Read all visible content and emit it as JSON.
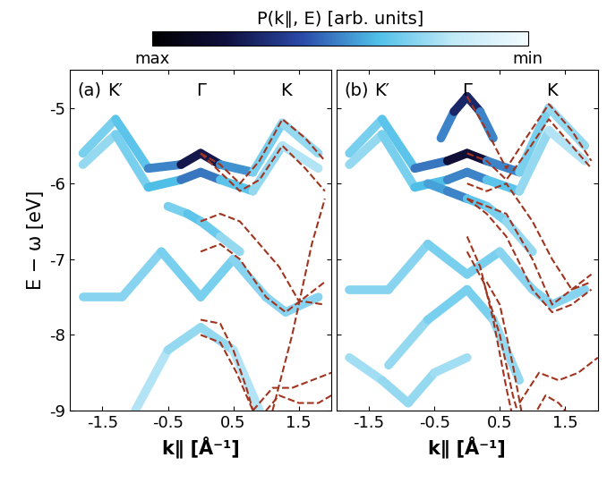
{
  "colorbar": {
    "label": "P(k∥, E) [arb. units]",
    "range": [
      0,
      1
    ],
    "ticks": [
      {
        "value": 1,
        "label": "max"
      },
      {
        "value": 0,
        "label": "min"
      }
    ]
  },
  "chart_data": [
    {
      "type": "band_map",
      "panel": "(a)",
      "xlabel": "k∥ [Å⁻¹]",
      "ylabel": "E − ω [eV]",
      "xlim": [
        -2.0,
        2.0
      ],
      "ylim": [
        -9,
        -4.5
      ],
      "xticks": [
        -1.5,
        -0.5,
        0.5,
        1.5
      ],
      "yticks": [
        -9,
        -8,
        -7,
        -6,
        -5
      ],
      "points": [
        {
          "label": "K′",
          "x": -1.3
        },
        {
          "label": "Γ",
          "x": 0
        },
        {
          "label": "K",
          "x": 1.3
        }
      ],
      "intensity": [
        {
          "x": [
            -1.8,
            -1.3,
            -0.8,
            -0.3,
            0,
            0.3,
            0.8,
            1.25,
            1.8
          ],
          "y": [
            -5.6,
            -5.15,
            -5.8,
            -5.75,
            -5.6,
            -5.75,
            -5.85,
            -5.2,
            -5.6
          ],
          "w": [
            0.3,
            0.35,
            0.4,
            0.6,
            0.95,
            0.6,
            0.35,
            0.3,
            0.25
          ]
        },
        {
          "x": [
            -1.8,
            -1.3,
            -0.8,
            -0.3,
            0,
            0.3,
            0.8,
            1.25,
            1.8
          ],
          "y": [
            -5.75,
            -5.35,
            -6.05,
            -5.95,
            -5.85,
            -5.95,
            -6.1,
            -5.5,
            -5.8
          ],
          "w": [
            0.25,
            0.3,
            0.35,
            0.45,
            0.6,
            0.45,
            0.3,
            0.25,
            0.2
          ]
        },
        {
          "x": [
            -0.5,
            -0.2,
            0,
            0.3,
            0.6
          ],
          "y": [
            -6.3,
            -6.4,
            -6.5,
            -6.7,
            -6.9
          ],
          "w": [
            0.3,
            0.35,
            0.4,
            0.3,
            0.25
          ]
        },
        {
          "x": [
            -1.8,
            -1.2,
            -0.6,
            0,
            0.5,
            1.0,
            1.3,
            1.8
          ],
          "y": [
            -7.5,
            -7.5,
            -6.9,
            -7.5,
            -7.0,
            -7.5,
            -7.7,
            -7.5
          ],
          "w": [
            0.3,
            0.3,
            0.3,
            0.35,
            0.3,
            0.3,
            0.3,
            0.3
          ]
        },
        {
          "x": [
            -1.0,
            -0.5,
            0,
            0.5,
            0.9
          ],
          "y": [
            -9,
            -8.2,
            -7.9,
            -8.2,
            -9
          ],
          "w": [
            0.2,
            0.25,
            0.3,
            0.25,
            0.2
          ]
        }
      ],
      "bands": {
        "color": "#a0341f",
        "line_style": "dashed",
        "lines": [
          {
            "x": [
              0,
              0.3,
              0.6,
              0.9,
              1.25,
              1.6,
              1.9
            ],
            "y": [
              -5.6,
              -5.75,
              -6.0,
              -5.7,
              -5.15,
              -5.4,
              -5.7
            ]
          },
          {
            "x": [
              0,
              0.3,
              0.6,
              0.9,
              1.25,
              1.6,
              1.9
            ],
            "y": [
              -5.6,
              -5.85,
              -6.1,
              -5.95,
              -5.5,
              -5.8,
              -6.1
            ]
          },
          {
            "x": [
              0,
              0.3,
              0.6,
              0.9,
              1.2,
              1.5,
              1.9
            ],
            "y": [
              -6.5,
              -6.4,
              -6.5,
              -6.8,
              -7.1,
              -7.55,
              -7.6
            ]
          },
          {
            "x": [
              0,
              0.3,
              0.6,
              1.0,
              1.3,
              1.6,
              1.9
            ],
            "y": [
              -6.9,
              -6.8,
              -7.0,
              -7.5,
              -7.7,
              -7.5,
              -7.3
            ]
          },
          {
            "x": [
              0,
              0.3,
              0.5,
              0.7,
              0.8
            ],
            "y": [
              -7.8,
              -7.85,
              -8.2,
              -8.7,
              -9.0
            ]
          },
          {
            "x": [
              0,
              0.3,
              0.55,
              0.75,
              0.85
            ],
            "y": [
              -8.0,
              -8.1,
              -8.5,
              -8.9,
              -9.1
            ]
          },
          {
            "x": [
              0.8,
              1.1,
              1.4,
              1.7,
              2.0
            ],
            "y": [
              -9.0,
              -8.7,
              -8.7,
              -8.6,
              -8.5
            ]
          },
          {
            "x": [
              0.9,
              1.2,
              1.5,
              1.8,
              2.0
            ],
            "y": [
              -9.1,
              -8.8,
              -8.9,
              -8.9,
              -8.8
            ]
          },
          {
            "x": [
              1.1,
              1.4,
              1.7,
              1.9
            ],
            "y": [
              -9.0,
              -8.0,
              -6.8,
              -6.2
            ]
          }
        ]
      }
    },
    {
      "type": "band_map",
      "panel": "(b)",
      "xlabel": "k∥ [Å⁻¹]",
      "xlim": [
        -2.0,
        2.0
      ],
      "ylim": [
        -9,
        -4.5
      ],
      "xticks": [
        -1.5,
        -0.5,
        0.5,
        1.5
      ],
      "yticks": [
        -9,
        -8,
        -7,
        -6,
        -5
      ],
      "tick_labels": "x",
      "points": [
        {
          "label": "K′",
          "x": -1.3
        },
        {
          "label": "Γ",
          "x": 0
        },
        {
          "label": "K",
          "x": 1.3
        }
      ],
      "intensity": [
        {
          "x": [
            -0.4,
            -0.2,
            0,
            0.2,
            0.4
          ],
          "y": [
            -5.4,
            -5.05,
            -4.85,
            -5.05,
            -5.4
          ],
          "w": [
            0.4,
            0.6,
            0.85,
            0.6,
            0.4
          ]
        },
        {
          "x": [
            -1.8,
            -1.3,
            -0.8,
            -0.3,
            0,
            0.3,
            0.8,
            1.25,
            1.8
          ],
          "y": [
            -5.6,
            -5.15,
            -5.8,
            -5.7,
            -5.6,
            -5.7,
            -5.85,
            -5.0,
            -5.5
          ],
          "w": [
            0.3,
            0.35,
            0.4,
            0.65,
            1.0,
            0.65,
            0.35,
            0.3,
            0.25
          ]
        },
        {
          "x": [
            -1.8,
            -1.3,
            -0.8,
            -0.3,
            0,
            0.3,
            0.8,
            1.25,
            1.8
          ],
          "y": [
            -5.75,
            -5.35,
            -6.05,
            -5.95,
            -5.85,
            -5.95,
            -6.1,
            -5.3,
            -5.7
          ],
          "w": [
            0.25,
            0.3,
            0.35,
            0.45,
            0.55,
            0.45,
            0.3,
            0.25,
            0.2
          ]
        },
        {
          "x": [
            -0.6,
            -0.3,
            0,
            0.3,
            0.6,
            1.0
          ],
          "y": [
            -6.0,
            -6.1,
            -6.2,
            -6.3,
            -6.5,
            -6.9
          ],
          "w": [
            0.3,
            0.6,
            0.4,
            0.35,
            0.3,
            0.25
          ]
        },
        {
          "x": [
            -1.8,
            -1.2,
            -0.6,
            0,
            0.5,
            1.0,
            1.3,
            1.8
          ],
          "y": [
            -7.4,
            -7.4,
            -6.8,
            -7.2,
            -6.9,
            -7.4,
            -7.6,
            -7.4
          ],
          "w": [
            0.3,
            0.3,
            0.3,
            0.35,
            0.3,
            0.3,
            0.3,
            0.3
          ]
        },
        {
          "x": [
            -1.2,
            -0.6,
            0,
            0.4,
            0.8
          ],
          "y": [
            -8.4,
            -7.8,
            -7.4,
            -7.8,
            -8.6
          ],
          "w": [
            0.25,
            0.3,
            0.35,
            0.3,
            0.25
          ]
        },
        {
          "x": [
            -1.8,
            -1.3,
            -0.9,
            -0.5,
            0
          ],
          "y": [
            -8.3,
            -8.6,
            -8.9,
            -8.5,
            -8.3
          ],
          "w": [
            0.25,
            0.25,
            0.3,
            0.25,
            0.25
          ]
        }
      ],
      "bands": {
        "color": "#a0341f",
        "line_style": "dashed",
        "lines": [
          {
            "x": [
              0,
              0.3,
              0.6,
              0.9,
              1.25,
              1.6,
              1.9
            ],
            "y": [
              -4.85,
              -5.3,
              -5.8,
              -5.4,
              -4.95,
              -5.3,
              -5.7
            ]
          },
          {
            "x": [
              0,
              0.3,
              0.6,
              0.9,
              1.25,
              1.6,
              1.9
            ],
            "y": [
              -5.6,
              -5.7,
              -5.95,
              -5.6,
              -5.15,
              -5.5,
              -5.8
            ]
          },
          {
            "x": [
              0,
              0.3,
              0.6,
              1.0,
              1.3,
              1.6,
              1.9
            ],
            "y": [
              -6.0,
              -6.1,
              -6.0,
              -6.5,
              -7.0,
              -7.4,
              -7.3
            ]
          },
          {
            "x": [
              0,
              0.3,
              0.6,
              1.0,
              1.3,
              1.6,
              1.9
            ],
            "y": [
              -6.2,
              -6.3,
              -6.4,
              -7.0,
              -7.6,
              -7.4,
              -7.2
            ]
          },
          {
            "x": [
              0,
              0.3,
              0.6,
              1.0,
              1.3,
              1.6,
              1.9
            ],
            "y": [
              -6.2,
              -6.4,
              -6.7,
              -7.4,
              -7.7,
              -7.6,
              -7.4
            ]
          },
          {
            "x": [
              0,
              0.2,
              0.4,
              0.6,
              0.7
            ],
            "y": [
              -6.7,
              -7.1,
              -7.8,
              -8.7,
              -9.1
            ]
          },
          {
            "x": [
              0,
              0.25,
              0.5,
              0.7,
              0.8
            ],
            "y": [
              -6.9,
              -7.3,
              -8.0,
              -8.8,
              -9.1
            ]
          },
          {
            "x": [
              0.3,
              0.5,
              0.7,
              0.85
            ],
            "y": [
              -7.3,
              -7.6,
              -8.4,
              -9.1
            ]
          },
          {
            "x": [
              0.8,
              1.1,
              1.4,
              1.7,
              2.0
            ],
            "y": [
              -8.9,
              -8.5,
              -8.6,
              -8.5,
              -8.3
            ]
          },
          {
            "x": [
              1.0,
              1.2,
              1.4,
              1.6
            ],
            "y": [
              -9.1,
              -8.8,
              -8.9,
              -9.1
            ]
          }
        ]
      }
    }
  ]
}
